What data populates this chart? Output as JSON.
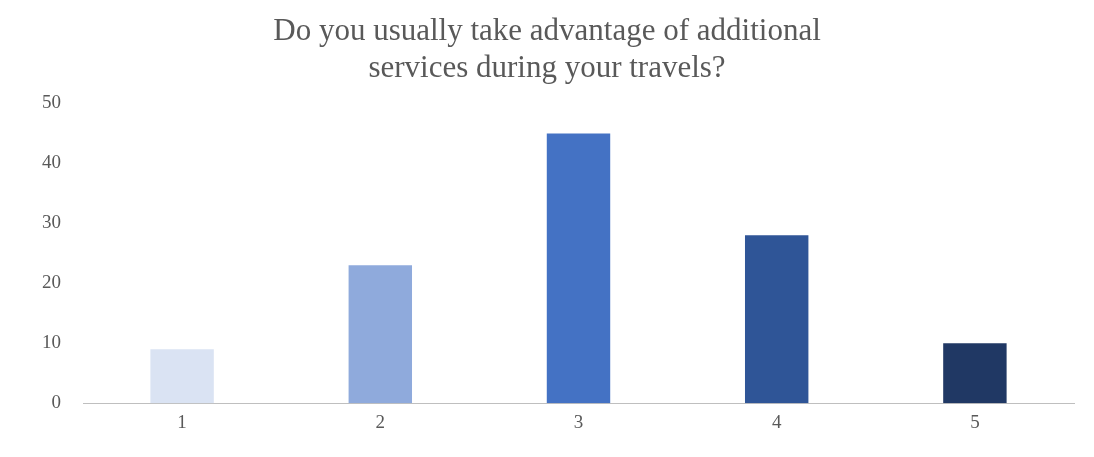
{
  "chart_data": {
    "type": "bar",
    "title": "Do you usually take advantage of additional services during your travels?",
    "categories": [
      "1",
      "2",
      "3",
      "4",
      "5"
    ],
    "values": [
      9,
      23,
      45,
      28,
      10
    ],
    "colors": [
      "#dae3f3",
      "#8faadc",
      "#4472c4",
      "#2f5597",
      "#203864"
    ],
    "ylim": [
      0,
      50
    ],
    "yticks": [
      0,
      10,
      20,
      30,
      40,
      50
    ],
    "grid": false,
    "legend": false
  }
}
